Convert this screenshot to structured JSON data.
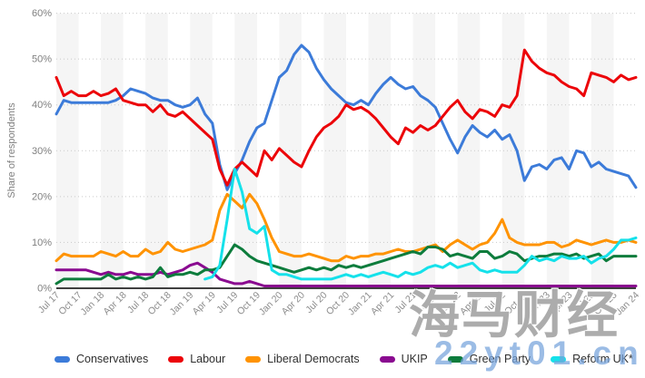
{
  "watermarks": {
    "overlay_cn": "海马财经",
    "overlay_url": "22yt01.cn"
  },
  "chart_data": {
    "type": "line",
    "title": "",
    "xlabel": "",
    "ylabel": "Share of respondents",
    "ylim": [
      0,
      60
    ],
    "y_tick_labels": [
      "0%",
      "10%",
      "20%",
      "30%",
      "40%",
      "50%",
      "60%"
    ],
    "grid": "horizontal-dotted",
    "plot_background": "alternating-vertical-bands",
    "legend_position": "bottom",
    "x_start": "Jul 17",
    "x_end": "Jan 24",
    "x_interval": "monthly",
    "x_tick_labels": [
      "Jul 17",
      "Oct 17",
      "Jan 18",
      "Apr 18",
      "Jul 18",
      "Oct 18",
      "Jan 19",
      "Apr 19",
      "Jul 19",
      "Oct 19",
      "Jan 20",
      "Apr 20",
      "Jul 20",
      "Oct 20",
      "Jan 21",
      "Apr 21",
      "Jul 21",
      "Oct 21",
      "Jan 22",
      "Apr 22",
      "Jul 22",
      "Oct 22",
      "Jan 23",
      "Apr 23",
      "Jul 23",
      "Oct 23",
      "Jan 24"
    ],
    "series": [
      {
        "name": "Conservatives",
        "color": "#3c7bd9",
        "values": [
          38,
          41,
          40.5,
          40.5,
          40.5,
          40.5,
          40.5,
          40.5,
          41,
          42,
          43.5,
          43,
          42.5,
          41.5,
          41,
          41,
          40,
          39.5,
          40,
          41.5,
          38,
          36,
          27,
          21.5,
          25,
          28,
          32,
          35,
          36,
          41,
          46,
          47.5,
          51,
          53,
          51.5,
          48,
          45.5,
          43.5,
          42,
          40.5,
          40,
          41,
          40,
          42.5,
          44.5,
          46,
          44.5,
          43.5,
          44,
          42,
          41,
          39.5,
          36,
          32.5,
          29.5,
          33,
          35.5,
          34,
          33,
          34.5,
          32.5,
          33.5,
          30,
          23.5,
          26.5,
          27,
          26,
          28,
          28.5,
          26,
          30,
          29.5,
          26.5,
          27.5,
          26,
          25.5,
          25,
          24.5,
          22
        ]
      },
      {
        "name": "Labour",
        "color": "#ec0409",
        "values": [
          46,
          42,
          43,
          42,
          42,
          43,
          42,
          42.5,
          43.5,
          41,
          40.5,
          40,
          40,
          38.5,
          40,
          38,
          37.5,
          38.5,
          37,
          35.5,
          34,
          32.5,
          26,
          22.5,
          26,
          27.5,
          26,
          24.5,
          30,
          28,
          30.5,
          29,
          27.5,
          26.5,
          30,
          33,
          35,
          36,
          37.5,
          40,
          39,
          39.5,
          38.5,
          37,
          35,
          33,
          31.5,
          35,
          34,
          35.5,
          34.5,
          35.5,
          37.5,
          39.5,
          41,
          38.5,
          37,
          39,
          38.5,
          37.5,
          40,
          39.5,
          42,
          52,
          49.5,
          48,
          47,
          46.5,
          45,
          44,
          43.5,
          42,
          47,
          46.5,
          46,
          45,
          46.5,
          45.5,
          46
        ]
      },
      {
        "name": "Liberal Democrats",
        "color": "#ff9302",
        "values": [
          6,
          7.5,
          7,
          7,
          7,
          7,
          8,
          7.5,
          7,
          8,
          7,
          7,
          8.5,
          7.5,
          8,
          10,
          8.5,
          8,
          8.5,
          9,
          9.5,
          10.5,
          17,
          20.5,
          19,
          17.5,
          20.5,
          18.5,
          15,
          11,
          8,
          7.5,
          7,
          7,
          7.5,
          7,
          6.5,
          6,
          6,
          7,
          6.5,
          7,
          7,
          7.5,
          7.5,
          8,
          8.5,
          8,
          8,
          8.5,
          9,
          9.5,
          8,
          9.5,
          10.5,
          9.5,
          8.5,
          9.5,
          10,
          12,
          15,
          11,
          10,
          9.5,
          9.5,
          9.5,
          10,
          10,
          9,
          9.5,
          10.5,
          10,
          9.5,
          10,
          10.5,
          10,
          10,
          10.5,
          10
        ]
      },
      {
        "name": "UKIP",
        "color": "#8a0a90",
        "values": [
          4,
          4,
          4,
          4,
          4,
          3.5,
          3,
          3.5,
          3,
          3,
          3.5,
          3,
          3,
          3,
          3.5,
          3,
          3.5,
          4,
          5,
          5.5,
          4.5,
          3.5,
          2,
          1.5,
          1,
          1,
          1.5,
          1,
          0.5,
          0.5,
          0.5,
          0.5,
          0.5,
          0.5,
          0.5,
          0.5,
          0.5,
          0.5,
          0.5,
          0.5,
          0.5,
          0.5,
          0.5,
          0.5,
          0.5,
          0.5,
          0.5,
          0.5,
          0.5,
          0.5,
          0.5,
          0.5,
          0.5,
          0.5,
          0.5,
          0.5,
          0.5,
          0.5,
          0.5,
          0.5,
          0.5,
          0.5,
          0.5,
          0.5,
          0.5,
          0.5,
          0.5,
          0.5,
          0.5,
          0.5,
          0.5,
          0.5,
          0.5,
          0.5,
          0.5,
          0.5,
          0.5,
          0.5,
          0.5
        ]
      },
      {
        "name": "Green Party",
        "color": "#0d7c3c",
        "values": [
          1,
          2,
          2,
          2,
          2,
          2,
          2,
          3,
          2,
          2.5,
          2,
          2.5,
          2,
          2.5,
          4.5,
          2.5,
          3,
          3,
          3.5,
          3,
          4,
          4,
          4.5,
          7,
          9.5,
          8.5,
          7,
          6,
          5.5,
          5,
          4.5,
          4,
          3.5,
          4,
          4.5,
          4,
          4.5,
          4,
          5,
          4.5,
          5,
          4.5,
          5,
          5.5,
          6,
          6.5,
          7,
          7.5,
          8,
          7.5,
          9,
          9,
          8.5,
          7,
          7.5,
          7,
          6.5,
          8,
          8,
          6.5,
          7,
          8,
          7.5,
          6,
          6.5,
          7,
          7,
          7.5,
          7.5,
          7,
          7.5,
          6.5,
          7,
          7.5,
          6,
          7,
          7,
          7,
          7
        ]
      },
      {
        "name": "Reform UK*",
        "color": "#15e1ea",
        "values": [
          null,
          null,
          null,
          null,
          null,
          null,
          null,
          null,
          null,
          null,
          null,
          null,
          null,
          null,
          null,
          null,
          null,
          null,
          null,
          null,
          2,
          2.5,
          5,
          15,
          26,
          21,
          13,
          12,
          13.5,
          4,
          3,
          3,
          2.5,
          2,
          2,
          2,
          2,
          2,
          2.5,
          3,
          2.5,
          3,
          2.5,
          3,
          3.5,
          3,
          2.5,
          3.5,
          3,
          3.5,
          4.5,
          5,
          4.5,
          5.5,
          4.5,
          5,
          5.5,
          4,
          3.5,
          4,
          3.5,
          3.5,
          3.5,
          5,
          7,
          6,
          6.5,
          6,
          7,
          6.5,
          6.5,
          7,
          5.5,
          6.5,
          7,
          8.5,
          10.5,
          10.5,
          11
        ]
      }
    ]
  }
}
